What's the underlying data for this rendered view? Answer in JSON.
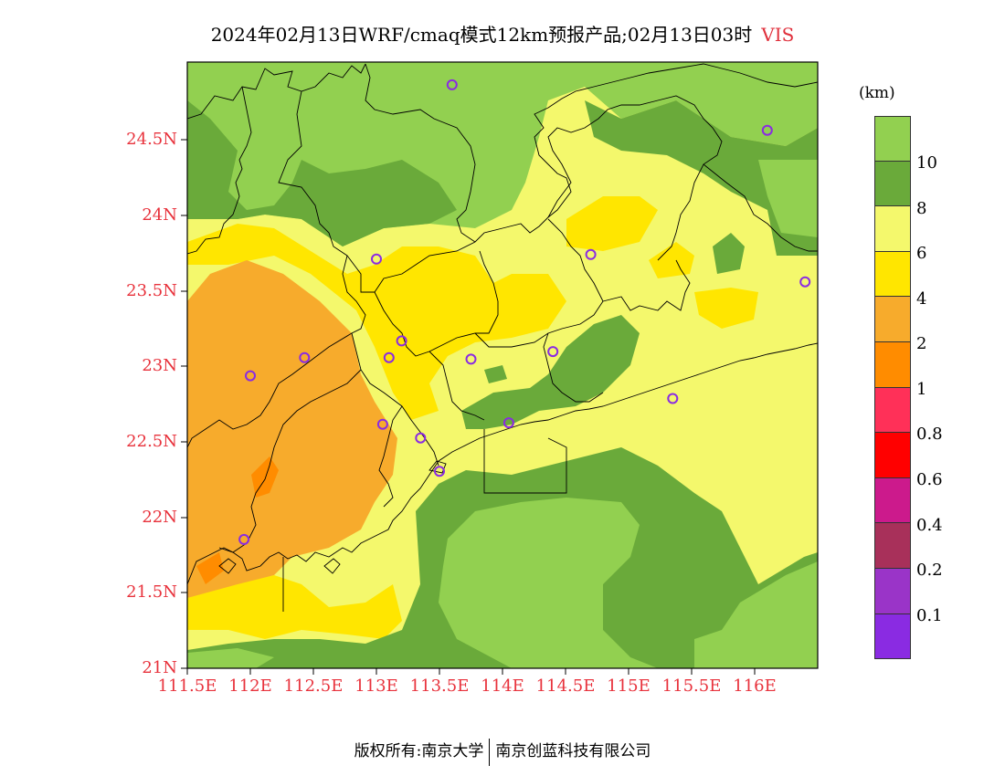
{
  "title": {
    "text": "2024年02月13日WRF/cmaq模式12km预报产品;02月13日03时",
    "variable": "VIS"
  },
  "axes": {
    "lat_labels": [
      "24.5N",
      "24N",
      "23.5N",
      "23N",
      "22.5N",
      "22N",
      "21.5N",
      "21N"
    ],
    "lon_labels": [
      "111.5E",
      "112E",
      "112.5E",
      "113E",
      "113.5E",
      "114E",
      "114.5E",
      "115E",
      "115.5E",
      "116E"
    ]
  },
  "legend": {
    "unit": "(km)",
    "labels": [
      "10",
      "8",
      "6",
      "4",
      "2",
      "1",
      "0.8",
      "0.6",
      "0.4",
      "0.2",
      "0.1"
    ],
    "colors": [
      "#92d050",
      "#6aaa3a",
      "#f4f86c",
      "#ffe600",
      "#f7ab2c",
      "#ff8c00",
      "#ff3058",
      "#ff0000",
      "#cc1a8c",
      "#a8305a",
      "#9a34c8",
      "#8a2be2"
    ]
  },
  "footer": {
    "copyright": "版权所有:南京大学",
    "company": "南京创蓝科技有限公司"
  },
  "chart_data": {
    "type": "map",
    "title": "2024年02月13日WRF/cmaq模式12km预报产品;02月13日03时",
    "variable": "VIS",
    "unit": "km",
    "lon_range": [
      111.5,
      116.5
    ],
    "lat_range": [
      21.0,
      25.0
    ],
    "stations": [
      {
        "lon": 113.6,
        "lat": 24.85
      },
      {
        "lon": 116.1,
        "lat": 24.55
      },
      {
        "lon": 113.0,
        "lat": 23.7
      },
      {
        "lon": 114.7,
        "lat": 23.73
      },
      {
        "lon": 116.4,
        "lat": 23.55
      },
      {
        "lon": 113.2,
        "lat": 23.16
      },
      {
        "lon": 112.0,
        "lat": 22.93
      },
      {
        "lon": 112.43,
        "lat": 23.05
      },
      {
        "lon": 113.1,
        "lat": 23.05
      },
      {
        "lon": 113.75,
        "lat": 23.04
      },
      {
        "lon": 114.4,
        "lat": 23.09
      },
      {
        "lon": 115.35,
        "lat": 22.78
      },
      {
        "lon": 113.05,
        "lat": 22.61
      },
      {
        "lon": 113.35,
        "lat": 22.52
      },
      {
        "lon": 114.05,
        "lat": 22.62
      },
      {
        "lon": 113.5,
        "lat": 22.3
      },
      {
        "lon": 111.95,
        "lat": 21.85
      }
    ]
  }
}
